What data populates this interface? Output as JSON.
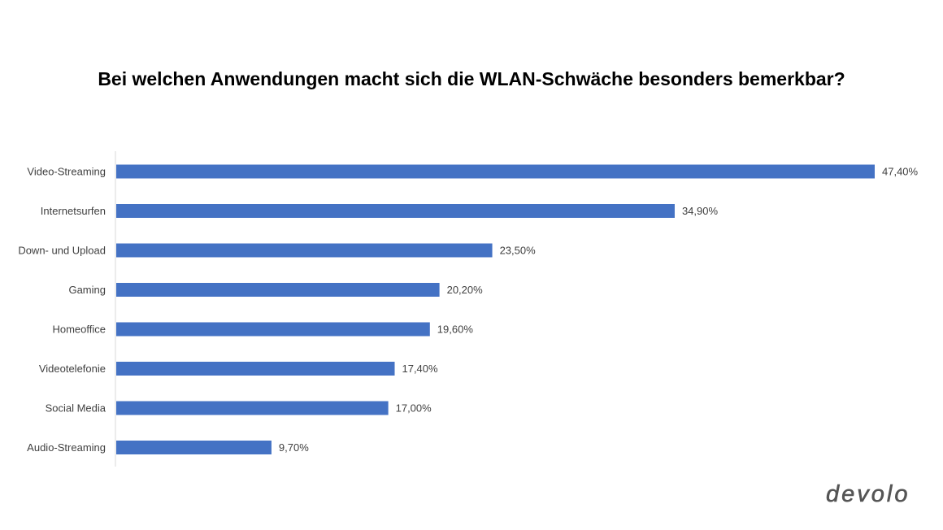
{
  "brand": {
    "logo_text": "devolo"
  },
  "colors": {
    "bar": "#4472C4",
    "axis": "#D9D9D9",
    "label": "#404040"
  },
  "chart_data": {
    "type": "bar",
    "orientation": "horizontal",
    "title": "Bei welchen Anwendungen macht sich die WLAN-Schwäche besonders bemerkbar?",
    "categories": [
      "Video-Streaming",
      "Internetsurfen",
      "Down- und Upload",
      "Gaming",
      "Homeoffice",
      "Videotelefonie",
      "Social Media",
      "Audio-Streaming"
    ],
    "values": [
      47.4,
      34.9,
      23.5,
      20.2,
      19.6,
      17.4,
      17.0,
      9.7
    ],
    "value_labels": [
      "47,40%",
      "34,90%",
      "23,50%",
      "20,20%",
      "19,60%",
      "17,40%",
      "17,00%",
      "9,70%"
    ],
    "unit": "%",
    "xlim": [
      0,
      47.4
    ],
    "grid": false,
    "legend": "none"
  }
}
